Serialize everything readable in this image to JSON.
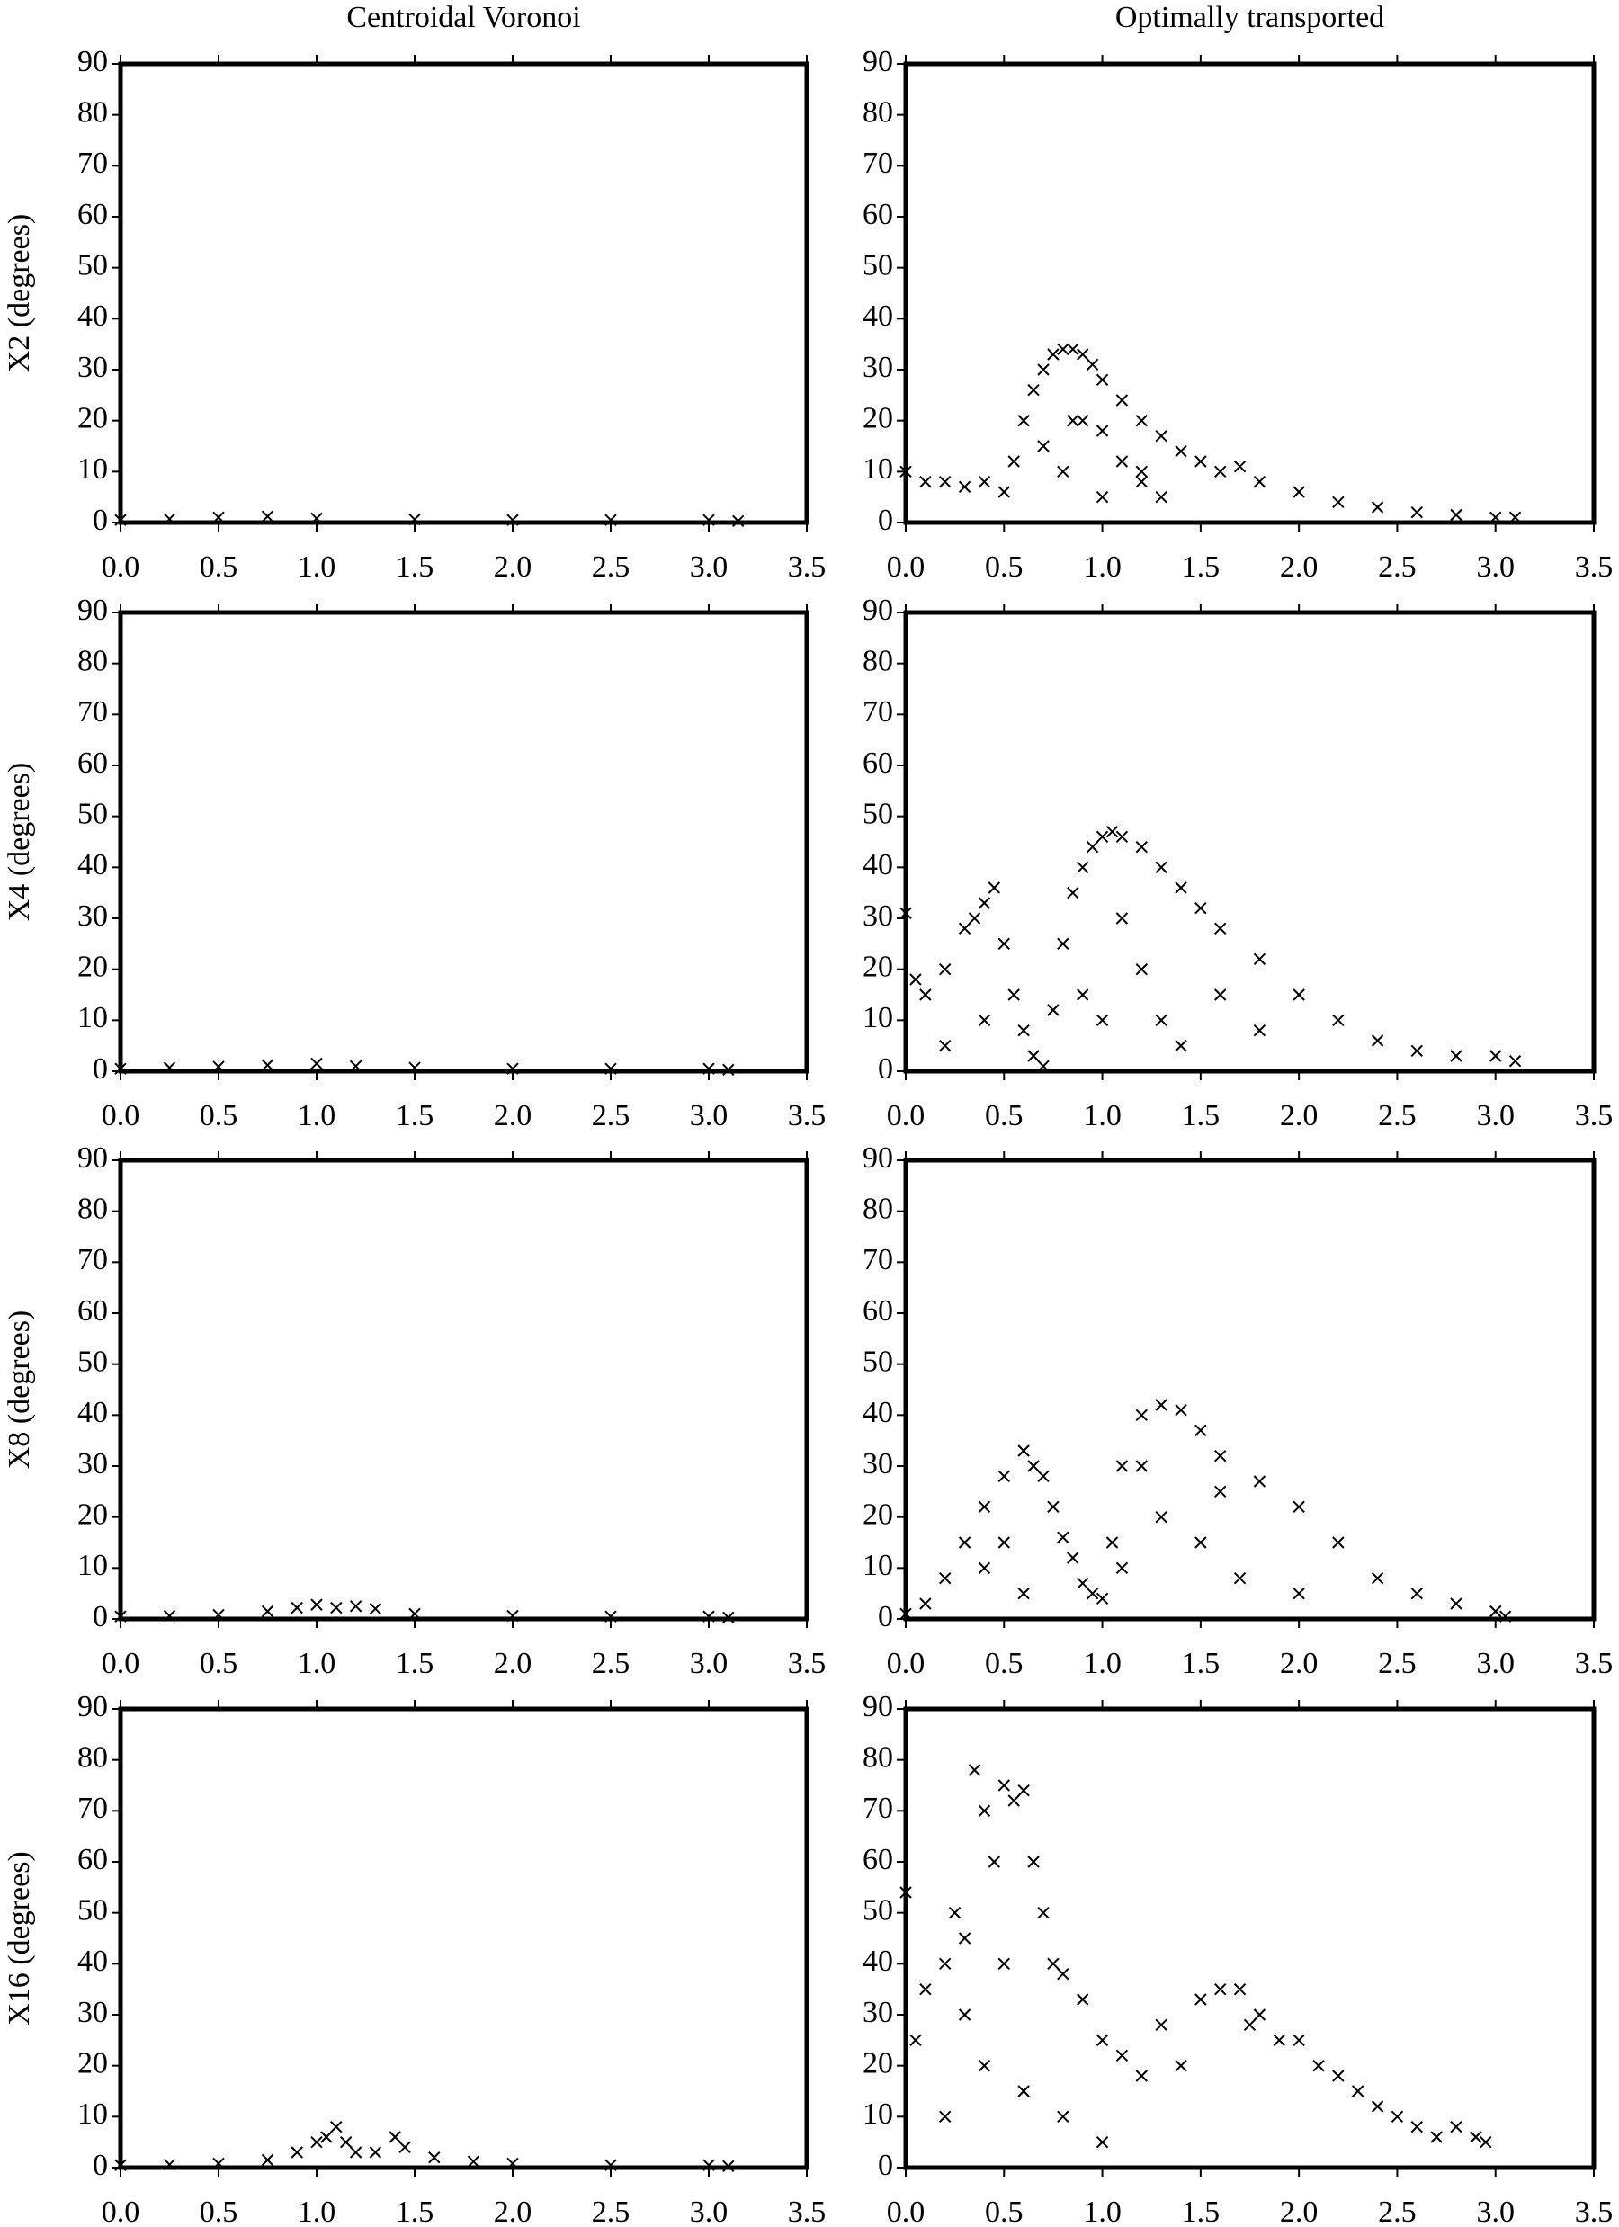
{
  "chart_data": [
    {
      "type": "scatter",
      "title": "Centroidal Voronoi",
      "ylabel": "X2 (degrees)",
      "marker": "x",
      "color": "#000000",
      "grid": false,
      "x": [
        0,
        0.25,
        0.5,
        0.75,
        1.0,
        1.5,
        2.0,
        2.5,
        3.0,
        3.15
      ],
      "y": [
        0.5,
        0.7,
        1,
        1.2,
        0.8,
        0.6,
        0.5,
        0.5,
        0.5,
        0.3
      ],
      "xlim": [
        0,
        3.5
      ],
      "ylim": [
        0,
        90
      ],
      "xticks": [
        {
          "value": 0,
          "label": "0.0"
        },
        0.5,
        {
          "value": 1,
          "label": "1.0"
        },
        1.5,
        {
          "value": 2,
          "label": "2.0"
        },
        2.5,
        {
          "value": 3,
          "label": "3.0"
        },
        3.5
      ],
      "yticks": [
        0,
        10,
        20,
        30,
        40,
        50,
        60,
        70,
        80,
        90
      ]
    },
    {
      "type": "scatter",
      "title": "Optimally transported",
      "marker": "x",
      "color": "#000000",
      "grid": false,
      "x": [
        0,
        0.1,
        0.2,
        0.3,
        0.4,
        0.5,
        0.55,
        0.6,
        0.65,
        0.7,
        0.75,
        0.8,
        0.85,
        0.9,
        0.95,
        1.0,
        1.1,
        1.2,
        1.3,
        1.4,
        1.5,
        1.6,
        1.7,
        1.8,
        2.0,
        2.2,
        2.4,
        2.6,
        2.8,
        3.0,
        3.1,
        0.7,
        0.8,
        0.9,
        1.0,
        1.1,
        1.2,
        1.3,
        0.85,
        1.0,
        1.2
      ],
      "y": [
        10,
        8,
        8,
        7,
        8,
        6,
        12,
        20,
        26,
        30,
        33,
        34,
        34,
        33,
        31,
        28,
        24,
        20,
        17,
        14,
        12,
        10,
        11,
        8,
        6,
        4,
        3,
        2,
        1.5,
        1,
        1,
        15,
        10,
        20,
        18,
        12,
        8,
        5,
        20,
        5,
        10
      ],
      "xlim": [
        0,
        3.5
      ],
      "ylim": [
        0,
        90
      ],
      "xticks": [
        {
          "value": 0,
          "label": "0.0"
        },
        0.5,
        {
          "value": 1,
          "label": "1.0"
        },
        1.5,
        {
          "value": 2,
          "label": "2.0"
        },
        2.5,
        {
          "value": 3,
          "label": "3.0"
        },
        3.5
      ],
      "yticks": [
        0,
        10,
        20,
        30,
        40,
        50,
        60,
        70,
        80,
        90
      ]
    },
    {
      "type": "scatter",
      "ylabel": "X4 (degrees)",
      "marker": "x",
      "color": "#000000",
      "grid": false,
      "x": [
        0,
        0.25,
        0.5,
        0.75,
        1.0,
        1.2,
        1.5,
        2.0,
        2.5,
        3.0,
        3.1
      ],
      "y": [
        0.5,
        0.7,
        0.9,
        1.2,
        1.5,
        1.0,
        0.7,
        0.5,
        0.5,
        0.5,
        0.3
      ],
      "xlim": [
        0,
        3.5
      ],
      "ylim": [
        0,
        90
      ],
      "xticks": [
        {
          "value": 0,
          "label": "0.0"
        },
        0.5,
        {
          "value": 1,
          "label": "1.0"
        },
        1.5,
        {
          "value": 2,
          "label": "2.0"
        },
        2.5,
        {
          "value": 3,
          "label": "3.0"
        },
        3.5
      ],
      "yticks": [
        0,
        10,
        20,
        30,
        40,
        50,
        60,
        70,
        80,
        90
      ]
    },
    {
      "type": "scatter",
      "marker": "x",
      "color": "#000000",
      "grid": false,
      "x": [
        0,
        0.05,
        0.1,
        0.2,
        0.3,
        0.35,
        0.4,
        0.45,
        0.5,
        0.55,
        0.6,
        0.65,
        0.7,
        0.75,
        0.8,
        0.85,
        0.9,
        0.95,
        1.0,
        1.05,
        1.1,
        1.2,
        1.3,
        1.4,
        1.5,
        1.6,
        1.8,
        2.0,
        2.2,
        2.4,
        2.6,
        2.8,
        3.0,
        3.1,
        0.4,
        0.9,
        1.0,
        1.2,
        1.4,
        1.6,
        0.2,
        1.1,
        1.3,
        1.8
      ],
      "y": [
        31,
        18,
        15,
        20,
        28,
        30,
        33,
        36,
        25,
        15,
        8,
        3,
        1,
        12,
        25,
        35,
        40,
        44,
        46,
        47,
        46,
        44,
        40,
        36,
        32,
        28,
        22,
        15,
        10,
        6,
        4,
        3,
        3,
        2,
        10,
        15,
        10,
        20,
        5,
        15,
        5,
        30,
        10,
        8
      ],
      "xlim": [
        0,
        3.5
      ],
      "ylim": [
        0,
        90
      ],
      "xticks": [
        {
          "value": 0,
          "label": "0.0"
        },
        0.5,
        {
          "value": 1,
          "label": "1.0"
        },
        1.5,
        {
          "value": 2,
          "label": "2.0"
        },
        2.5,
        {
          "value": 3,
          "label": "3.0"
        },
        3.5
      ],
      "yticks": [
        0,
        10,
        20,
        30,
        40,
        50,
        60,
        70,
        80,
        90
      ]
    },
    {
      "type": "scatter",
      "ylabel": "X8 (degrees)",
      "marker": "x",
      "color": "#000000",
      "grid": false,
      "x": [
        0,
        0.25,
        0.5,
        0.75,
        0.9,
        1.0,
        1.1,
        1.2,
        1.3,
        1.5,
        2.0,
        2.5,
        3.0,
        3.1
      ],
      "y": [
        0.5,
        0.6,
        0.8,
        1.5,
        2.2,
        2.8,
        2.2,
        2.5,
        2.0,
        1.0,
        0.6,
        0.5,
        0.5,
        0.3
      ],
      "xlim": [
        0,
        3.5
      ],
      "ylim": [
        0,
        90
      ],
      "xticks": [
        {
          "value": 0,
          "label": "0.0"
        },
        0.5,
        {
          "value": 1,
          "label": "1.0"
        },
        1.5,
        {
          "value": 2,
          "label": "2.0"
        },
        2.5,
        {
          "value": 3,
          "label": "3.0"
        },
        3.5
      ],
      "yticks": [
        0,
        10,
        20,
        30,
        40,
        50,
        60,
        70,
        80,
        90
      ]
    },
    {
      "type": "scatter",
      "marker": "x",
      "color": "#000000",
      "grid": false,
      "x": [
        0,
        0.1,
        0.2,
        0.3,
        0.4,
        0.5,
        0.6,
        0.65,
        0.7,
        0.75,
        0.8,
        0.85,
        0.9,
        0.95,
        1.0,
        1.05,
        1.1,
        1.2,
        1.3,
        1.4,
        1.5,
        1.6,
        1.8,
        2.0,
        2.2,
        2.4,
        2.6,
        2.8,
        3.0,
        3.05,
        0.4,
        0.5,
        0.6,
        1.1,
        1.3,
        1.5,
        1.7,
        2.0,
        1.2,
        1.6
      ],
      "y": [
        1,
        3,
        8,
        15,
        22,
        28,
        33,
        30,
        28,
        22,
        16,
        12,
        7,
        5,
        4,
        15,
        30,
        40,
        42,
        41,
        37,
        32,
        27,
        22,
        15,
        8,
        5,
        3,
        1.5,
        0.5,
        10,
        15,
        5,
        10,
        20,
        15,
        8,
        5,
        30,
        25
      ],
      "xlim": [
        0,
        3.5
      ],
      "ylim": [
        0,
        90
      ],
      "xticks": [
        {
          "value": 0,
          "label": "0.0"
        },
        0.5,
        {
          "value": 1,
          "label": "1.0"
        },
        1.5,
        {
          "value": 2,
          "label": "2.0"
        },
        2.5,
        {
          "value": 3,
          "label": "3.0"
        },
        3.5
      ],
      "yticks": [
        0,
        10,
        20,
        30,
        40,
        50,
        60,
        70,
        80,
        90
      ]
    },
    {
      "type": "scatter",
      "ylabel": "X16 (degrees)",
      "marker": "x",
      "color": "#000000",
      "grid": false,
      "x": [
        0,
        0.25,
        0.5,
        0.75,
        0.9,
        1.0,
        1.05,
        1.1,
        1.15,
        1.2,
        1.3,
        1.4,
        1.45,
        1.6,
        1.8,
        2.0,
        2.5,
        3.0,
        3.1
      ],
      "y": [
        0.5,
        0.6,
        0.8,
        1.5,
        3,
        5,
        6,
        8,
        5,
        3,
        3,
        6,
        4,
        2,
        1.2,
        0.8,
        0.5,
        0.5,
        0.3
      ],
      "xlim": [
        0,
        3.5
      ],
      "ylim": [
        0,
        90
      ],
      "xticks": [
        {
          "value": 0,
          "label": "0.0"
        },
        0.5,
        {
          "value": 1,
          "label": "1.0"
        },
        1.5,
        {
          "value": 2,
          "label": "2.0"
        },
        2.5,
        {
          "value": 3,
          "label": "3.0"
        },
        3.5
      ],
      "yticks": [
        0,
        10,
        20,
        30,
        40,
        50,
        60,
        70,
        80,
        90
      ]
    },
    {
      "type": "scatter",
      "marker": "x",
      "color": "#000000",
      "grid": false,
      "x": [
        0,
        0.05,
        0.1,
        0.2,
        0.25,
        0.3,
        0.35,
        0.4,
        0.45,
        0.5,
        0.55,
        0.6,
        0.65,
        0.7,
        0.75,
        0.8,
        0.9,
        1.0,
        1.1,
        1.2,
        1.3,
        1.4,
        1.5,
        1.6,
        1.7,
        1.75,
        1.8,
        1.9,
        2.0,
        2.1,
        2.2,
        2.3,
        2.4,
        2.5,
        2.6,
        2.7,
        2.8,
        2.9,
        2.95,
        0.2,
        0.4,
        0.6,
        0.8,
        1.0,
        0.3,
        0.5
      ],
      "y": [
        54,
        25,
        35,
        40,
        50,
        45,
        78,
        70,
        60,
        75,
        72,
        74,
        60,
        50,
        40,
        38,
        33,
        25,
        22,
        18,
        28,
        20,
        33,
        35,
        35,
        28,
        30,
        25,
        25,
        20,
        18,
        15,
        12,
        10,
        8,
        6,
        8,
        6,
        5,
        10,
        20,
        15,
        10,
        5,
        30,
        40
      ],
      "xlim": [
        0,
        3.5
      ],
      "ylim": [
        0,
        90
      ],
      "xticks": [
        {
          "value": 0,
          "label": "0.0"
        },
        0.5,
        {
          "value": 1,
          "label": "1.0"
        },
        1.5,
        {
          "value": 2,
          "label": "2.0"
        },
        2.5,
        {
          "value": 3,
          "label": "3.0"
        },
        3.5
      ],
      "yticks": [
        0,
        10,
        20,
        30,
        40,
        50,
        60,
        70,
        80,
        90
      ]
    }
  ]
}
